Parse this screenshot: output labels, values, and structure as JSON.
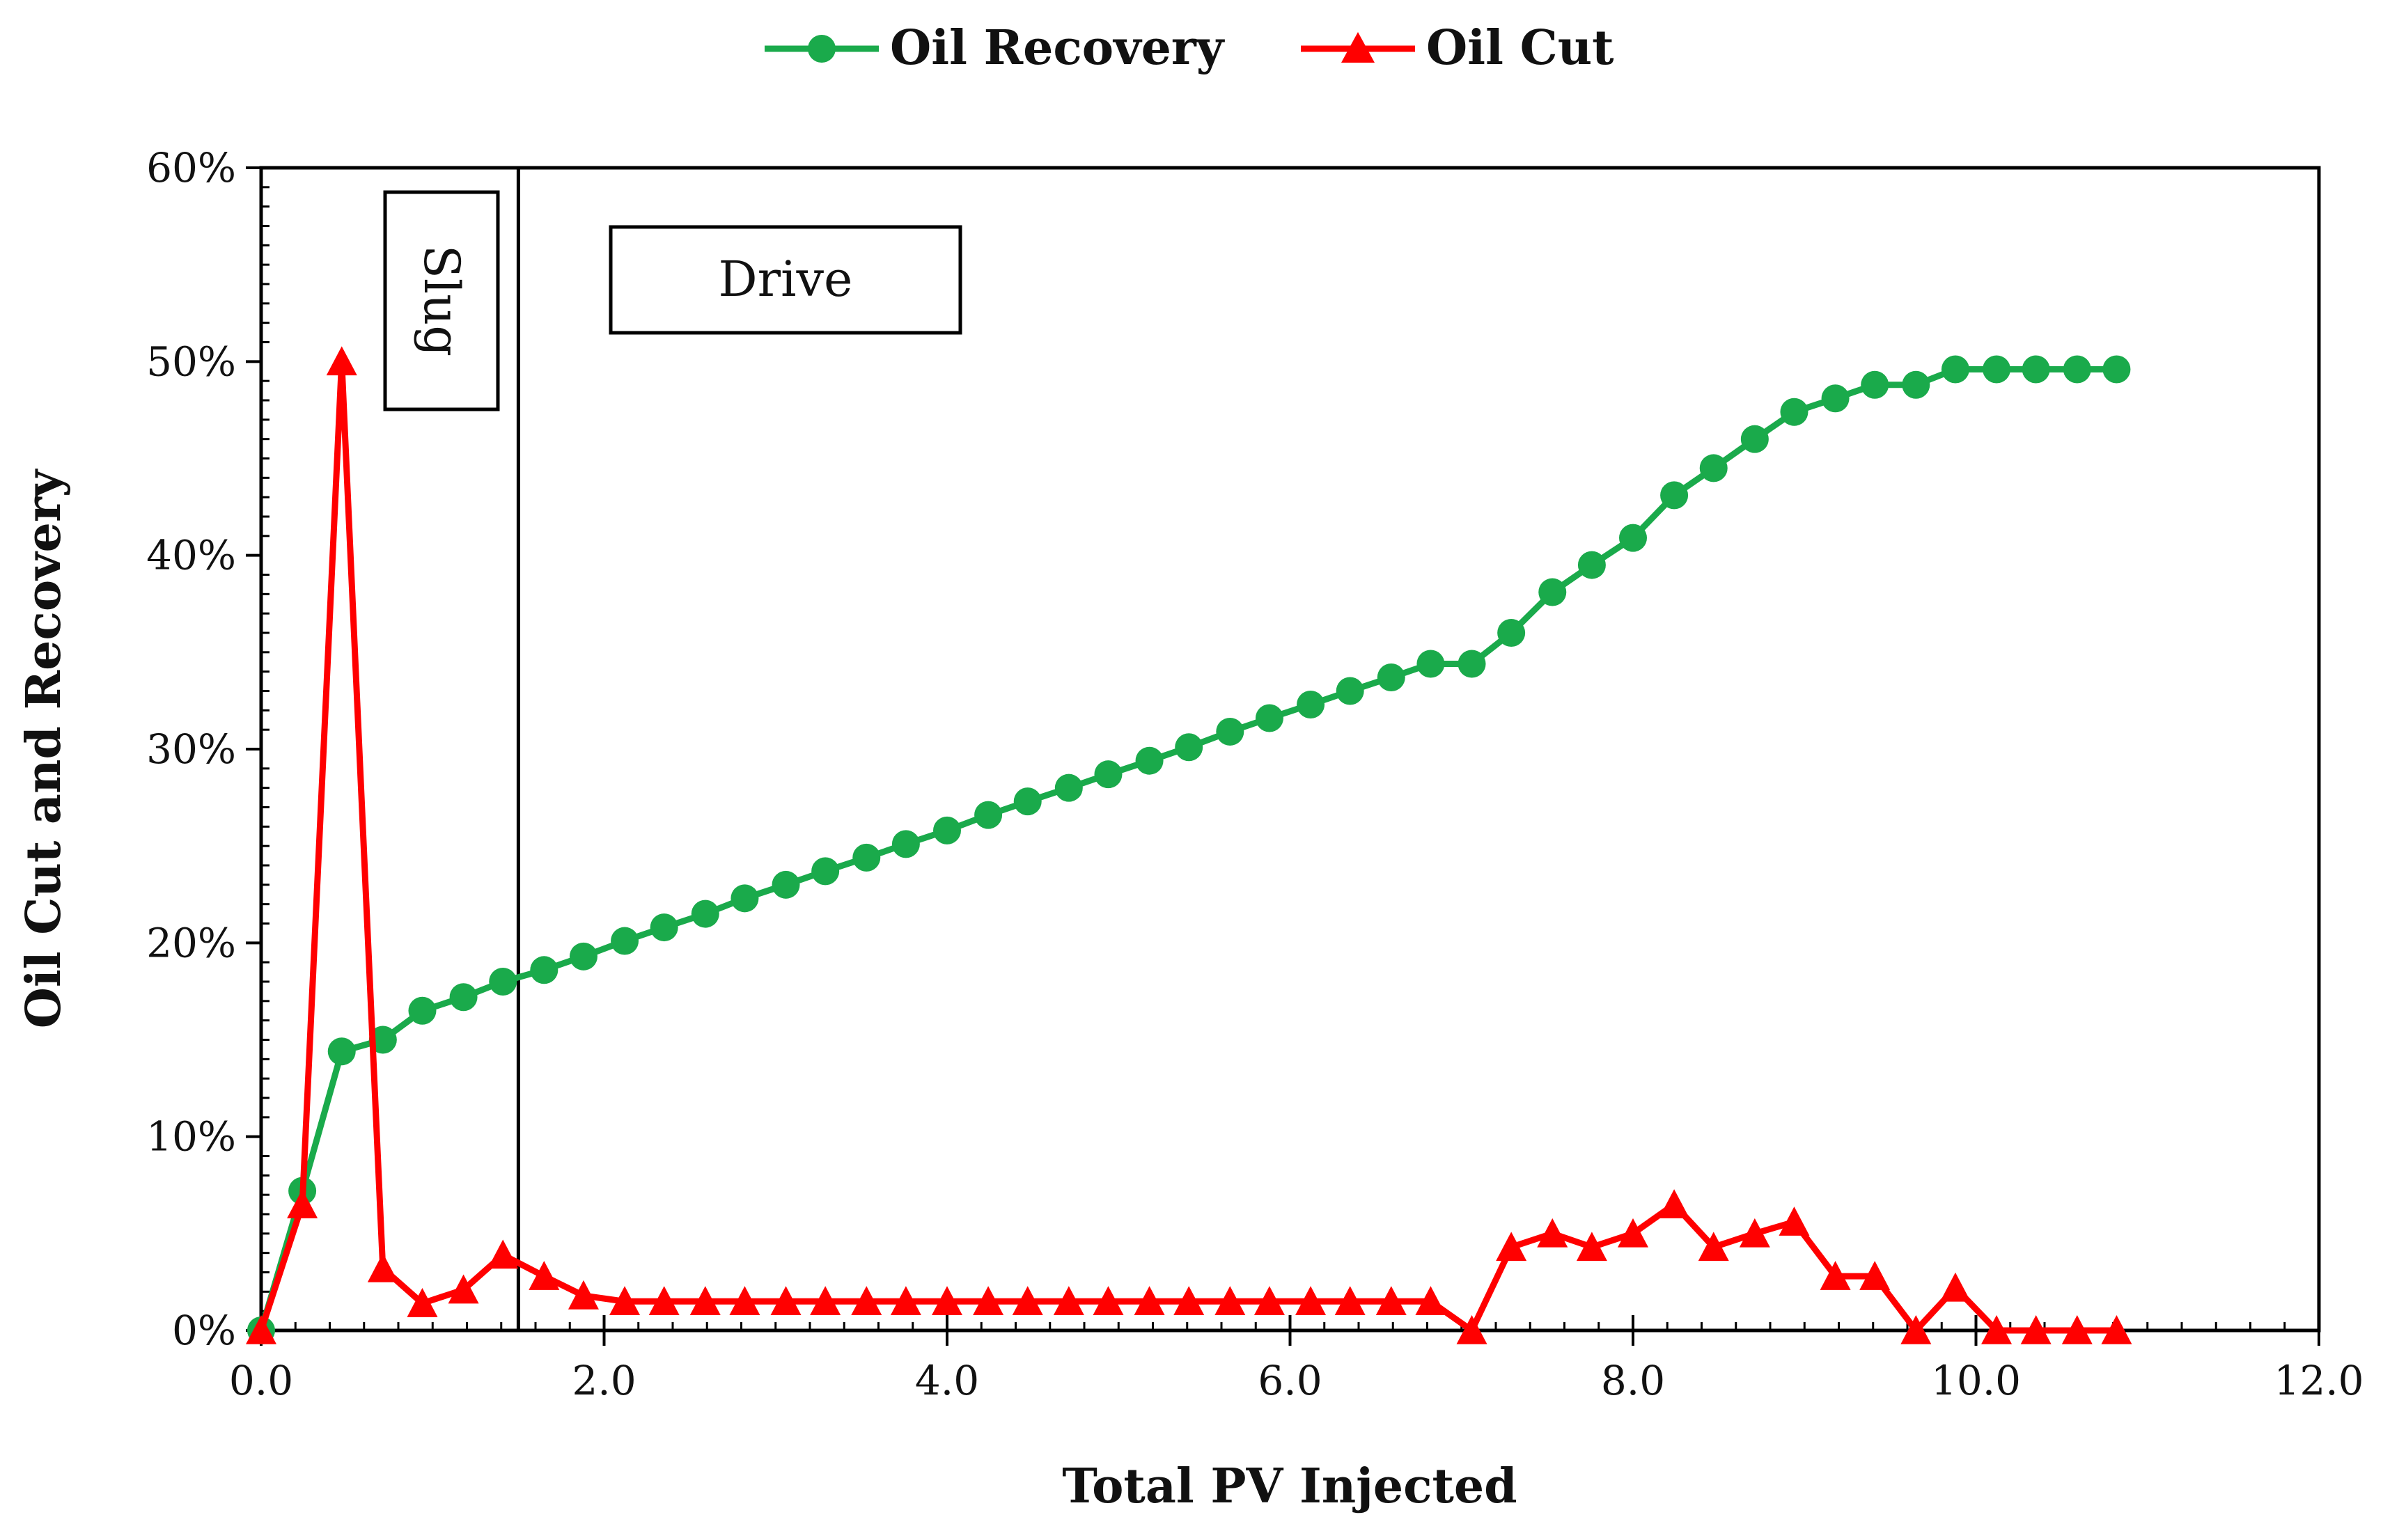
{
  "chart_data": {
    "type": "line",
    "title": "",
    "xlabel": "Total PV Injected",
    "ylabel": "Oil Cut and Recovery",
    "xlim": [
      0,
      12
    ],
    "ylim": [
      0,
      60
    ],
    "x_ticks": [
      "0.0",
      "2.0",
      "4.0",
      "6.0",
      "8.0",
      "10.0",
      "12.0"
    ],
    "y_ticks": [
      "0%",
      "10%",
      "20%",
      "30%",
      "40%",
      "50%",
      "60%"
    ],
    "grid": false,
    "legend_position": "top",
    "colors": {
      "oil_recovery": "#1aaa4b",
      "oil_cut": "#ff0000"
    },
    "annotations": {
      "slug_label": "Slug",
      "drive_label": "Drive",
      "slug_end_x": 1.5
    },
    "series": [
      {
        "name": "Oil Recovery",
        "marker": "circle",
        "x": [
          0.0,
          0.24,
          0.47,
          0.71,
          0.94,
          1.18,
          1.41,
          1.65,
          1.88,
          2.12,
          2.35,
          2.59,
          2.82,
          3.06,
          3.29,
          3.53,
          3.76,
          4.0,
          4.24,
          4.47,
          4.71,
          4.94,
          5.18,
          5.41,
          5.65,
          5.88,
          6.12,
          6.35,
          6.59,
          6.82,
          7.06,
          7.29,
          7.53,
          7.76,
          8.0,
          8.24,
          8.47,
          8.71,
          8.94,
          9.18,
          9.41,
          9.65,
          9.88,
          10.12,
          10.35,
          10.59,
          10.82
        ],
        "values": [
          0.0,
          7.2,
          14.4,
          15.0,
          16.5,
          17.2,
          18.0,
          18.6,
          19.3,
          20.1,
          20.8,
          21.5,
          22.3,
          23.0,
          23.7,
          24.4,
          25.1,
          25.8,
          26.6,
          27.3,
          28.0,
          28.7,
          29.4,
          30.1,
          30.9,
          31.6,
          32.3,
          33.0,
          33.7,
          34.4,
          34.4,
          36.0,
          38.1,
          39.5,
          40.9,
          43.1,
          44.5,
          46.0,
          47.4,
          48.1,
          48.8,
          48.8,
          49.6,
          49.6,
          49.6,
          49.6,
          49.6
        ]
      },
      {
        "name": "Oil Cut",
        "marker": "triangle",
        "x": [
          0.0,
          0.24,
          0.47,
          0.71,
          0.94,
          1.18,
          1.41,
          1.65,
          1.88,
          2.12,
          2.35,
          2.59,
          2.82,
          3.06,
          3.29,
          3.53,
          3.76,
          4.0,
          4.24,
          4.47,
          4.71,
          4.94,
          5.18,
          5.41,
          5.65,
          5.88,
          6.12,
          6.35,
          6.59,
          6.82,
          7.06,
          7.29,
          7.53,
          7.76,
          8.0,
          8.24,
          8.47,
          8.71,
          8.94,
          9.18,
          9.41,
          9.65,
          9.88,
          10.12,
          10.35,
          10.59,
          10.82
        ],
        "values": [
          0.0,
          6.5,
          50.0,
          3.2,
          1.4,
          2.1,
          3.9,
          2.8,
          1.8,
          1.5,
          1.5,
          1.5,
          1.5,
          1.5,
          1.5,
          1.5,
          1.5,
          1.5,
          1.5,
          1.5,
          1.5,
          1.5,
          1.5,
          1.5,
          1.5,
          1.5,
          1.5,
          1.5,
          1.5,
          1.5,
          0.0,
          4.3,
          5.0,
          4.3,
          5.0,
          6.5,
          4.3,
          5.0,
          5.6,
          2.8,
          2.8,
          0.0,
          2.2,
          0.0,
          0.0,
          0.0,
          0.0
        ]
      }
    ]
  }
}
